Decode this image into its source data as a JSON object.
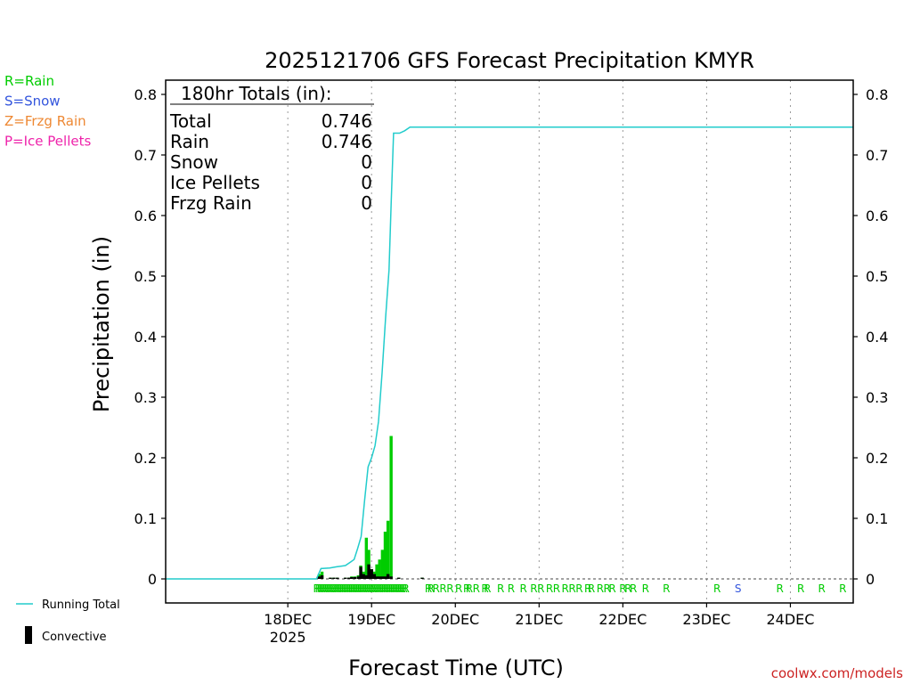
{
  "chart_data": {
    "type": "bar",
    "title": "2025121706 GFS Forecast Precipitation KMYR",
    "xlabel": "Forecast Time (UTC)",
    "ylabel": "Precipitation (in)",
    "ylim": [
      0,
      0.82
    ],
    "xlim_hours": [
      -17,
      180
    ],
    "y_ticks": [
      "0",
      "0.1",
      "0.2",
      "0.3",
      "0.4",
      "0.5",
      "0.6",
      "0.7",
      "0.8"
    ],
    "x_ticks": [
      {
        "hour": 18,
        "label": "18DEC",
        "sub": "2025"
      },
      {
        "hour": 42,
        "label": "19DEC",
        "sub": ""
      },
      {
        "hour": 66,
        "label": "20DEC",
        "sub": ""
      },
      {
        "hour": 90,
        "label": "21DEC",
        "sub": ""
      },
      {
        "hour": 114,
        "label": "22DEC",
        "sub": ""
      },
      {
        "hour": 138,
        "label": "23DEC",
        "sub": ""
      },
      {
        "hour": 162,
        "label": "24DEC",
        "sub": ""
      }
    ],
    "grid": "vertical dotted at day boundaries",
    "precip_type_legend": [
      {
        "code": "R",
        "label": "R=Rain",
        "color": "#00cc00"
      },
      {
        "code": "S",
        "label": "S=Snow",
        "color": "#3355dd"
      },
      {
        "code": "Z",
        "label": "Z=Frzg Rain",
        "color": "#ee8833"
      },
      {
        "code": "P",
        "label": "P=Ice Pellets",
        "color": "#ee22aa"
      }
    ],
    "series_legend": [
      {
        "label": "Running Total",
        "color": "#22cccc"
      },
      {
        "label": "Convective",
        "color": "#000000"
      }
    ],
    "totals": {
      "header": "180hr Totals (in):",
      "rows": [
        {
          "label": "Total",
          "value": "0.746"
        },
        {
          "label": "Rain",
          "value": "0.746"
        },
        {
          "label": "Snow",
          "value": "0"
        },
        {
          "label": "Ice Pellets",
          "value": "0"
        },
        {
          "label": "Frzg Rain",
          "value": "0"
        }
      ]
    },
    "precip_bars": [
      {
        "hour": 27,
        "total": 0.008,
        "convective": 0.004
      },
      {
        "hour": 27.8,
        "total": 0.012,
        "convective": 0.006
      },
      {
        "hour": 30.2,
        "total": 0.002,
        "convective": 0.002
      },
      {
        "hour": 31.2,
        "total": 0.002,
        "convective": 0.002
      },
      {
        "hour": 32.2,
        "total": 0.002,
        "convective": 0.002
      },
      {
        "hour": 34.5,
        "total": 0.002,
        "convective": 0.002
      },
      {
        "hour": 35.5,
        "total": 0.002,
        "convective": 0.002
      },
      {
        "hour": 36.3,
        "total": 0.004,
        "convective": 0.003
      },
      {
        "hour": 37.2,
        "total": 0.004,
        "convective": 0.003
      },
      {
        "hour": 38.2,
        "total": 0.006,
        "convective": 0.004
      },
      {
        "hour": 38.9,
        "total": 0.022,
        "convective": 0.02
      },
      {
        "hour": 39.7,
        "total": 0.012,
        "convective": 0.008
      },
      {
        "hour": 40.5,
        "total": 0.068,
        "convective": 0.006
      },
      {
        "hour": 41.2,
        "total": 0.048,
        "convective": 0.024
      },
      {
        "hour": 42,
        "total": 0.016,
        "convective": 0.016
      },
      {
        "hour": 42.8,
        "total": 0.012,
        "convective": 0.008
      },
      {
        "hour": 43.5,
        "total": 0.024,
        "convective": 0.004
      },
      {
        "hour": 44.3,
        "total": 0.032,
        "convective": 0.004
      },
      {
        "hour": 45.1,
        "total": 0.048,
        "convective": 0.004
      },
      {
        "hour": 45.9,
        "total": 0.078,
        "convective": 0.004
      },
      {
        "hour": 46.7,
        "total": 0.096,
        "convective": 0.008
      },
      {
        "hour": 47.6,
        "total": 0.236,
        "convective": 0.004
      },
      {
        "hour": 49.8,
        "total": 0.002,
        "convective": 0.002
      },
      {
        "hour": 56.5,
        "total": 0.002,
        "convective": 0.002
      }
    ],
    "running_total": [
      {
        "hour": -17,
        "value": 0
      },
      {
        "hour": 26.2,
        "value": 0
      },
      {
        "hour": 27.5,
        "value": 0.017
      },
      {
        "hour": 30,
        "value": 0.018
      },
      {
        "hour": 32,
        "value": 0.02
      },
      {
        "hour": 34.5,
        "value": 0.022
      },
      {
        "hour": 36,
        "value": 0.028
      },
      {
        "hour": 37,
        "value": 0.032
      },
      {
        "hour": 38,
        "value": 0.05
      },
      {
        "hour": 39,
        "value": 0.07
      },
      {
        "hour": 40,
        "value": 0.13
      },
      {
        "hour": 41,
        "value": 0.185
      },
      {
        "hour": 42,
        "value": 0.2
      },
      {
        "hour": 43,
        "value": 0.22
      },
      {
        "hour": 44,
        "value": 0.26
      },
      {
        "hour": 45,
        "value": 0.34
      },
      {
        "hour": 46,
        "value": 0.43
      },
      {
        "hour": 47,
        "value": 0.51
      },
      {
        "hour": 47.6,
        "value": 0.62
      },
      {
        "hour": 48.3,
        "value": 0.736
      },
      {
        "hour": 50,
        "value": 0.736
      },
      {
        "hour": 51.5,
        "value": 0.74
      },
      {
        "hour": 53,
        "value": 0.746
      },
      {
        "hour": 180,
        "value": 0.746
      }
    ],
    "precip_type_markers": [
      {
        "hour": 26.3,
        "code": "R"
      },
      {
        "hour": 26.8,
        "code": "R"
      },
      {
        "hour": 27.3,
        "code": "R"
      },
      {
        "hour": 27.8,
        "code": "R"
      },
      {
        "hour": 28.3,
        "code": "R"
      },
      {
        "hour": 28.8,
        "code": "R"
      },
      {
        "hour": 29.3,
        "code": "R"
      },
      {
        "hour": 29.8,
        "code": "R"
      },
      {
        "hour": 30.3,
        "code": "R"
      },
      {
        "hour": 30.8,
        "code": "R"
      },
      {
        "hour": 31.3,
        "code": "R"
      },
      {
        "hour": 31.8,
        "code": "R"
      },
      {
        "hour": 32.3,
        "code": "R"
      },
      {
        "hour": 32.8,
        "code": "R"
      },
      {
        "hour": 33.3,
        "code": "R"
      },
      {
        "hour": 33.8,
        "code": "R"
      },
      {
        "hour": 34.3,
        "code": "R"
      },
      {
        "hour": 34.8,
        "code": "R"
      },
      {
        "hour": 35.3,
        "code": "R"
      },
      {
        "hour": 35.8,
        "code": "R"
      },
      {
        "hour": 36.3,
        "code": "R"
      },
      {
        "hour": 36.8,
        "code": "R"
      },
      {
        "hour": 37.3,
        "code": "R"
      },
      {
        "hour": 37.8,
        "code": "R"
      },
      {
        "hour": 38.3,
        "code": "R"
      },
      {
        "hour": 38.8,
        "code": "R"
      },
      {
        "hour": 39.3,
        "code": "R"
      },
      {
        "hour": 39.8,
        "code": "R"
      },
      {
        "hour": 40.3,
        "code": "R"
      },
      {
        "hour": 40.8,
        "code": "R"
      },
      {
        "hour": 41.3,
        "code": "R"
      },
      {
        "hour": 41.8,
        "code": "R"
      },
      {
        "hour": 42.3,
        "code": "R"
      },
      {
        "hour": 42.8,
        "code": "R"
      },
      {
        "hour": 43.3,
        "code": "R"
      },
      {
        "hour": 43.8,
        "code": "R"
      },
      {
        "hour": 44.3,
        "code": "R"
      },
      {
        "hour": 44.8,
        "code": "R"
      },
      {
        "hour": 45.3,
        "code": "R"
      },
      {
        "hour": 45.8,
        "code": "R"
      },
      {
        "hour": 46.3,
        "code": "R"
      },
      {
        "hour": 46.8,
        "code": "R"
      },
      {
        "hour": 47.3,
        "code": "R"
      },
      {
        "hour": 47.8,
        "code": "R"
      },
      {
        "hour": 48.3,
        "code": "R"
      },
      {
        "hour": 48.8,
        "code": "R"
      },
      {
        "hour": 49.3,
        "code": "R"
      },
      {
        "hour": 49.8,
        "code": "R"
      },
      {
        "hour": 50.3,
        "code": "R"
      },
      {
        "hour": 50.8,
        "code": "R"
      },
      {
        "hour": 51.3,
        "code": "R"
      },
      {
        "hour": 51.8,
        "code": "R"
      },
      {
        "hour": 58.3,
        "code": "R"
      },
      {
        "hour": 59,
        "code": "R"
      },
      {
        "hour": 60.5,
        "code": "R"
      },
      {
        "hour": 62.5,
        "code": "R"
      },
      {
        "hour": 64.5,
        "code": "R"
      },
      {
        "hour": 67,
        "code": "R"
      },
      {
        "hour": 69.3,
        "code": "R"
      },
      {
        "hour": 70,
        "code": "R"
      },
      {
        "hour": 72,
        "code": "R"
      },
      {
        "hour": 74.5,
        "code": "R"
      },
      {
        "hour": 75.2,
        "code": "R"
      },
      {
        "hour": 79,
        "code": "R"
      },
      {
        "hour": 82,
        "code": "R"
      },
      {
        "hour": 85.5,
        "code": "R"
      },
      {
        "hour": 88.5,
        "code": "R"
      },
      {
        "hour": 90.5,
        "code": "R"
      },
      {
        "hour": 93,
        "code": "R"
      },
      {
        "hour": 95,
        "code": "R"
      },
      {
        "hour": 97.5,
        "code": "R"
      },
      {
        "hour": 99.5,
        "code": "R"
      },
      {
        "hour": 101.5,
        "code": "R"
      },
      {
        "hour": 104,
        "code": "R"
      },
      {
        "hour": 105,
        "code": "R"
      },
      {
        "hour": 107.5,
        "code": "R"
      },
      {
        "hour": 109.5,
        "code": "R"
      },
      {
        "hour": 111,
        "code": "R"
      },
      {
        "hour": 114,
        "code": "R"
      },
      {
        "hour": 115.5,
        "code": "R"
      },
      {
        "hour": 117,
        "code": "R"
      },
      {
        "hour": 120.5,
        "code": "R"
      },
      {
        "hour": 126.5,
        "code": "R"
      },
      {
        "hour": 141,
        "code": "R"
      },
      {
        "hour": 147,
        "code": "S"
      },
      {
        "hour": 159,
        "code": "R"
      },
      {
        "hour": 165,
        "code": "R"
      },
      {
        "hour": 171,
        "code": "R"
      },
      {
        "hour": 177,
        "code": "R"
      }
    ],
    "footer_text": "coolwx.com/models"
  }
}
